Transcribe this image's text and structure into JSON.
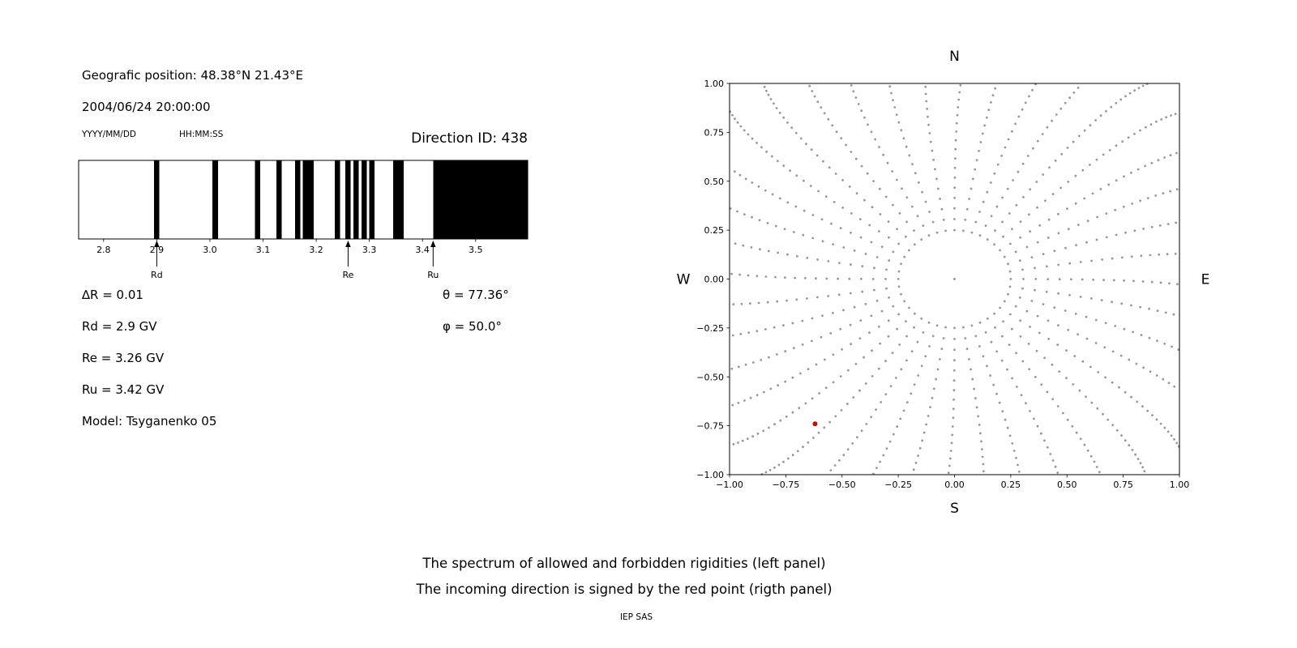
{
  "header": {
    "position": "Geografic position: 48.38°N 21.43°E",
    "datetime": "2004/06/24 20:00:00",
    "date_format": "YYYY/MM/DD",
    "time_format": "HH:MM:SS",
    "direction_id": "Direction ID: 438"
  },
  "params": {
    "delta_r": "∆R = 0.01",
    "rd": "Rd = 2.9 GV",
    "re": "Re = 3.26 GV",
    "ru": "Ru = 3.42 GV",
    "model": "Model: Tsyganenko 05",
    "theta": "θ = 77.36°",
    "phi": "φ = 50.0°"
  },
  "caption": {
    "line1": "The spectrum of allowed and forbidden rigidities (left panel)",
    "line2": "The incoming direction is signed by the red point (rigth panel)",
    "credit": "IEP SAS"
  },
  "chart_data": [
    {
      "id": "rigidity_spectrum",
      "type": "bar",
      "panel": "left",
      "description": "Barcode spectrum of allowed (black) and forbidden (white) rigidities",
      "xlim": [
        2.753,
        3.598
      ],
      "xticks": [
        2.8,
        2.9,
        3.0,
        3.1,
        3.2,
        3.3,
        3.4,
        3.5
      ],
      "bar_width_gv": 0.01,
      "allowed_rigidities_gv": [
        2.9,
        3.01,
        3.09,
        3.13,
        3.165,
        3.18,
        3.19,
        3.24,
        3.26,
        3.275,
        3.29,
        3.305,
        3.35,
        3.36
      ],
      "solid_allowed_band_gv": [
        3.42,
        3.598
      ],
      "cutoffs": [
        {
          "label": "Rd",
          "value_gv": 2.9
        },
        {
          "label": "Re",
          "value_gv": 3.26
        },
        {
          "label": "Ru",
          "value_gv": 3.42
        }
      ],
      "bar_color": "#000000"
    },
    {
      "id": "direction_map",
      "type": "scatter",
      "panel": "right",
      "description": "Asymptotic direction map; incoming direction marked by red point",
      "xlim": [
        -1.0,
        1.0
      ],
      "ylim": [
        -1.0,
        1.0
      ],
      "xticks": [
        -1.0,
        -0.75,
        -0.5,
        -0.25,
        0.0,
        0.25,
        0.5,
        0.75,
        1.0
      ],
      "yticks": [
        -1.0,
        -0.75,
        -0.5,
        -0.25,
        0.0,
        0.25,
        0.5,
        0.75,
        1.0
      ],
      "grid": false,
      "compass": {
        "top": "N",
        "bottom": "S",
        "left": "W",
        "right": "E"
      },
      "spokes": {
        "count": 40,
        "r_inner": 0.25,
        "r_outer": 1.42,
        "points_per_spoke": 40,
        "radial_power": 1.9,
        "curvature_deg": 9,
        "color": "#8c8c8c",
        "dot_radius_px": 1.4
      },
      "center_dot": {
        "x": 0.0,
        "y": 0.0
      },
      "red_point": {
        "x": -0.62,
        "y": -0.74,
        "color": "#e00000",
        "radius_px": 3
      }
    }
  ]
}
